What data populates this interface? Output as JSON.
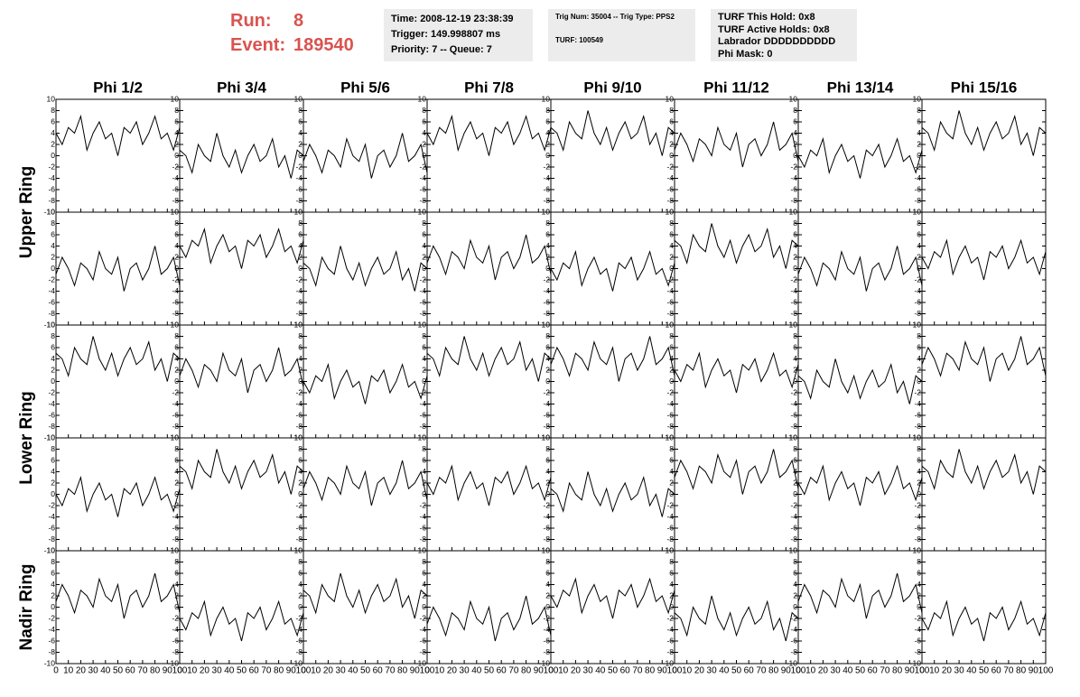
{
  "header": {
    "run_label": "Run:",
    "run": "8",
    "event_label": "Event:",
    "event": "189540"
  },
  "info_boxes": [
    [
      "Time: 2008-12-19 23:38:39",
      "Trigger: 149.998807 ms",
      "Priority: 7 -- Queue: 7"
    ],
    [
      "Trig Num: 35004 -- Trig Type: PPS2",
      "TURF: 100549"
    ],
    [
      "TURF This Hold: 0x8",
      "TURF Active Holds: 0x8",
      "Labrador DDDDDDDDDD",
      "Phi Mask: 0"
    ]
  ],
  "chart_data": {
    "type": "line",
    "columns": [
      "Phi 1/2",
      "Phi 3/4",
      "Phi 5/6",
      "Phi 7/8",
      "Phi 9/10",
      "Phi 11/12",
      "Phi 13/14",
      "Phi 15/16"
    ],
    "row_labels": [
      "Upper Ring",
      "Lower Ring",
      "Nadir Ring"
    ],
    "xlim": [
      0,
      100
    ],
    "ylim": [
      -10,
      10
    ],
    "xticks": [
      0,
      10,
      20,
      30,
      40,
      50,
      60,
      70,
      80,
      90,
      100
    ],
    "yticks": [
      -10,
      -8,
      -6,
      -4,
      -2,
      0,
      2,
      4,
      6,
      8,
      10
    ],
    "color": "#000000",
    "x": [
      0,
      5,
      10,
      15,
      20,
      25,
      30,
      35,
      40,
      45,
      50,
      55,
      60,
      65,
      70,
      75,
      80,
      85,
      90,
      95,
      100
    ],
    "panels": [
      [
        {
          "values": [
            4,
            2,
            5,
            4,
            7,
            1,
            4,
            6,
            3,
            4,
            0,
            5,
            4,
            6,
            2,
            4,
            7,
            3,
            4,
            1,
            5
          ]
        },
        {
          "values": [
            1,
            0,
            -3,
            2,
            0,
            -1,
            4,
            0,
            -2,
            1,
            -3,
            0,
            2,
            -1,
            0,
            3,
            -2,
            0,
            -4,
            1,
            0
          ]
        },
        {
          "values": [
            -1,
            2,
            0,
            -3,
            1,
            0,
            -2,
            3,
            0,
            -1,
            2,
            -4,
            0,
            1,
            -2,
            0,
            4,
            -1,
            0,
            2,
            -3
          ]
        },
        {
          "values": [
            4,
            2,
            5,
            4,
            7,
            1,
            4,
            6,
            3,
            4,
            0,
            5,
            4,
            6,
            2,
            4,
            7,
            3,
            4,
            1,
            5
          ]
        },
        {
          "values": [
            5,
            4,
            1,
            6,
            4,
            3,
            8,
            4,
            2,
            5,
            1,
            4,
            6,
            3,
            4,
            7,
            2,
            4,
            0,
            5,
            4
          ]
        },
        {
          "values": [
            1,
            4,
            2,
            -1,
            3,
            2,
            0,
            5,
            2,
            1,
            4,
            -2,
            2,
            3,
            0,
            2,
            6,
            1,
            2,
            4,
            -1
          ]
        },
        {
          "values": [
            0,
            -2,
            1,
            0,
            3,
            -3,
            0,
            2,
            -1,
            0,
            -4,
            1,
            0,
            2,
            -2,
            0,
            3,
            -1,
            0,
            -3,
            1
          ]
        },
        {
          "values": [
            5,
            4,
            1,
            6,
            4,
            3,
            8,
            4,
            2,
            5,
            1,
            4,
            6,
            3,
            4,
            7,
            2,
            4,
            0,
            5,
            4
          ]
        }
      ],
      [
        {
          "values": [
            -1,
            2,
            0,
            -3,
            1,
            0,
            -2,
            3,
            0,
            -1,
            2,
            -4,
            0,
            1,
            -2,
            0,
            4,
            -1,
            0,
            2,
            -3
          ]
        },
        {
          "values": [
            4,
            2,
            5,
            4,
            7,
            1,
            4,
            6,
            3,
            4,
            0,
            5,
            4,
            6,
            2,
            4,
            7,
            3,
            4,
            1,
            5
          ]
        },
        {
          "values": [
            1,
            0,
            -3,
            2,
            0,
            -1,
            4,
            0,
            -2,
            1,
            -3,
            0,
            2,
            -1,
            0,
            3,
            -2,
            0,
            -4,
            1,
            0
          ]
        },
        {
          "values": [
            1,
            4,
            2,
            -1,
            3,
            2,
            0,
            5,
            2,
            1,
            4,
            -2,
            2,
            3,
            0,
            2,
            6,
            1,
            2,
            4,
            -1
          ]
        },
        {
          "values": [
            0,
            -2,
            1,
            0,
            3,
            -3,
            0,
            2,
            -1,
            0,
            -4,
            1,
            0,
            2,
            -2,
            0,
            3,
            -1,
            0,
            -3,
            1
          ]
        },
        {
          "values": [
            5,
            4,
            1,
            6,
            4,
            3,
            8,
            4,
            2,
            5,
            1,
            4,
            6,
            3,
            4,
            7,
            2,
            4,
            0,
            5,
            4
          ]
        },
        {
          "values": [
            -1,
            2,
            0,
            -3,
            1,
            0,
            -2,
            3,
            0,
            -1,
            2,
            -4,
            0,
            1,
            -2,
            0,
            4,
            -1,
            0,
            2,
            -3
          ]
        },
        {
          "values": [
            2,
            0,
            3,
            2,
            5,
            -1,
            2,
            4,
            1,
            2,
            -2,
            3,
            2,
            4,
            0,
            2,
            5,
            1,
            2,
            -1,
            3
          ]
        }
      ],
      [
        {
          "values": [
            5,
            4,
            1,
            6,
            4,
            3,
            8,
            4,
            2,
            5,
            1,
            4,
            6,
            3,
            4,
            7,
            2,
            4,
            0,
            5,
            4
          ]
        },
        {
          "values": [
            1,
            4,
            2,
            -1,
            3,
            2,
            0,
            5,
            2,
            1,
            4,
            -2,
            2,
            3,
            0,
            2,
            6,
            1,
            2,
            4,
            -1
          ]
        },
        {
          "values": [
            0,
            -2,
            1,
            0,
            3,
            -3,
            0,
            2,
            -1,
            0,
            -4,
            1,
            0,
            2,
            -2,
            0,
            3,
            -1,
            0,
            -3,
            1
          ]
        },
        {
          "values": [
            5,
            4,
            1,
            6,
            4,
            3,
            8,
            4,
            2,
            5,
            1,
            4,
            6,
            3,
            4,
            7,
            2,
            4,
            0,
            5,
            4
          ]
        },
        {
          "values": [
            3,
            6,
            4,
            1,
            5,
            4,
            2,
            7,
            4,
            3,
            6,
            0,
            4,
            5,
            2,
            4,
            8,
            3,
            4,
            6,
            1
          ]
        },
        {
          "values": [
            2,
            0,
            3,
            2,
            5,
            -1,
            2,
            4,
            1,
            2,
            -2,
            3,
            2,
            4,
            0,
            2,
            5,
            1,
            2,
            -1,
            3
          ]
        },
        {
          "values": [
            1,
            0,
            -3,
            2,
            0,
            -1,
            4,
            0,
            -2,
            1,
            -3,
            0,
            2,
            -1,
            0,
            3,
            -2,
            0,
            -4,
            1,
            0
          ]
        },
        {
          "values": [
            3,
            6,
            4,
            1,
            5,
            4,
            2,
            7,
            4,
            3,
            6,
            0,
            4,
            5,
            2,
            4,
            8,
            3,
            4,
            6,
            1
          ]
        }
      ],
      [
        {
          "values": [
            0,
            -2,
            1,
            0,
            3,
            -3,
            0,
            2,
            -1,
            0,
            -4,
            1,
            0,
            2,
            -2,
            0,
            3,
            -1,
            0,
            -3,
            1
          ]
        },
        {
          "values": [
            5,
            4,
            1,
            6,
            4,
            3,
            8,
            4,
            2,
            5,
            1,
            4,
            6,
            3,
            4,
            7,
            2,
            4,
            0,
            5,
            4
          ]
        },
        {
          "values": [
            1,
            4,
            2,
            -1,
            3,
            2,
            0,
            5,
            2,
            1,
            4,
            -2,
            2,
            3,
            0,
            2,
            6,
            1,
            2,
            4,
            -1
          ]
        },
        {
          "values": [
            2,
            0,
            3,
            2,
            5,
            -1,
            2,
            4,
            1,
            2,
            -2,
            3,
            2,
            4,
            0,
            2,
            5,
            1,
            2,
            -1,
            3
          ]
        },
        {
          "values": [
            1,
            0,
            -3,
            2,
            0,
            -1,
            4,
            0,
            -2,
            1,
            -3,
            0,
            2,
            -1,
            0,
            3,
            -2,
            0,
            -4,
            1,
            0
          ]
        },
        {
          "values": [
            3,
            6,
            4,
            1,
            5,
            4,
            2,
            7,
            4,
            3,
            6,
            0,
            4,
            5,
            2,
            4,
            8,
            3,
            4,
            6,
            1
          ]
        },
        {
          "values": [
            2,
            0,
            3,
            2,
            5,
            -1,
            2,
            4,
            1,
            2,
            -2,
            3,
            2,
            4,
            0,
            2,
            5,
            1,
            2,
            -1,
            3
          ]
        },
        {
          "values": [
            5,
            4,
            1,
            6,
            4,
            3,
            8,
            4,
            2,
            5,
            1,
            4,
            6,
            3,
            4,
            7,
            2,
            4,
            0,
            5,
            4
          ]
        }
      ],
      [
        {
          "values": [
            1,
            4,
            2,
            -1,
            3,
            2,
            0,
            5,
            2,
            1,
            4,
            -2,
            2,
            3,
            0,
            2,
            6,
            1,
            2,
            4,
            -1
          ]
        },
        {
          "values": [
            -2,
            -4,
            -1,
            -2,
            1,
            -5,
            -2,
            0,
            -3,
            -2,
            -6,
            -1,
            -2,
            0,
            -4,
            -2,
            1,
            -3,
            -2,
            -5,
            -1
          ]
        },
        {
          "values": [
            3,
            2,
            -1,
            4,
            2,
            1,
            6,
            2,
            0,
            3,
            -1,
            2,
            4,
            1,
            2,
            5,
            0,
            2,
            -2,
            3,
            2
          ]
        },
        {
          "values": [
            -3,
            0,
            -2,
            -5,
            -1,
            -2,
            -4,
            1,
            -2,
            -3,
            0,
            -6,
            -2,
            -1,
            -4,
            -2,
            2,
            -3,
            -2,
            0,
            -5
          ]
        },
        {
          "values": [
            2,
            0,
            3,
            2,
            5,
            -1,
            2,
            4,
            1,
            2,
            -2,
            3,
            2,
            4,
            0,
            2,
            5,
            1,
            2,
            -1,
            3
          ]
        },
        {
          "values": [
            -1,
            -2,
            -5,
            0,
            -2,
            -3,
            2,
            -2,
            -4,
            -1,
            -5,
            -2,
            0,
            -3,
            -2,
            1,
            -4,
            -2,
            -6,
            -1,
            -2
          ]
        },
        {
          "values": [
            1,
            4,
            2,
            -1,
            3,
            2,
            0,
            5,
            2,
            1,
            4,
            -2,
            2,
            3,
            0,
            2,
            6,
            1,
            2,
            4,
            -1
          ]
        },
        {
          "values": [
            -2,
            -4,
            -1,
            -2,
            1,
            -5,
            -2,
            0,
            -3,
            -2,
            -6,
            -1,
            -2,
            0,
            -4,
            -2,
            1,
            -3,
            -2,
            -5,
            -1
          ]
        }
      ]
    ]
  }
}
